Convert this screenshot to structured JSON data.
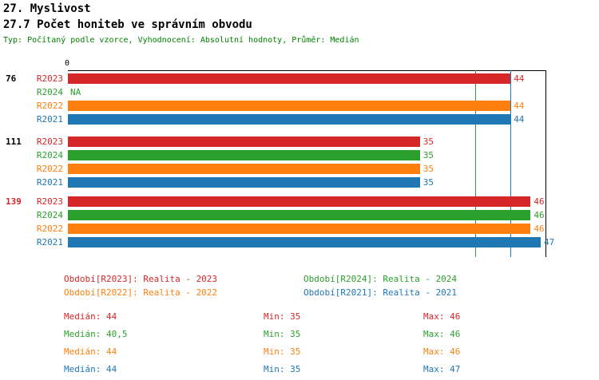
{
  "header": {
    "title": "27. Myslivost",
    "subtitle": "27.7 Počet honiteb ve správním obvodu",
    "info": "Typ: Počítaný podle vzorce, Vyhodnocení: Absolutní hodnoty, Průměr: Medián"
  },
  "colors": {
    "R2023": "#d62728",
    "R2024": "#2ca02c",
    "R2022": "#ff7f0e",
    "R2021": "#1f77b4",
    "info_text": "#008000",
    "axis": "#000000",
    "group_label_default": "#000000",
    "group_label_highlight": "#d62728"
  },
  "chart_data": {
    "type": "bar",
    "orientation": "horizontal",
    "title": "27.7 Počet honiteb ve správním obvodu",
    "xlabel": "",
    "ylabel": "",
    "xlim": [
      0,
      47.4
    ],
    "axis_zero_label": "0",
    "grid": false,
    "legend_position": "bottom",
    "series_order": [
      "R2023",
      "R2024",
      "R2022",
      "R2021"
    ],
    "groups": [
      {
        "label": "76",
        "highlighted": false,
        "bars": [
          {
            "series": "R2023",
            "value": 44,
            "display": "44"
          },
          {
            "series": "R2024",
            "value": null,
            "display": "NA"
          },
          {
            "series": "R2022",
            "value": 44,
            "display": "44"
          },
          {
            "series": "R2021",
            "value": 44,
            "display": "44"
          }
        ]
      },
      {
        "label": "111",
        "highlighted": false,
        "bars": [
          {
            "series": "R2023",
            "value": 35,
            "display": "35"
          },
          {
            "series": "R2024",
            "value": 35,
            "display": "35"
          },
          {
            "series": "R2022",
            "value": 35,
            "display": "35"
          },
          {
            "series": "R2021",
            "value": 35,
            "display": "35"
          }
        ]
      },
      {
        "label": "139",
        "highlighted": true,
        "bars": [
          {
            "series": "R2023",
            "value": 46,
            "display": "46"
          },
          {
            "series": "R2024",
            "value": 46,
            "display": "46"
          },
          {
            "series": "R2022",
            "value": 46,
            "display": "46"
          },
          {
            "series": "R2021",
            "value": 47,
            "display": "47"
          }
        ]
      }
    ],
    "reference_lines": [
      {
        "value": 40.5,
        "color": "#2ca02c",
        "meaning": "median R2024"
      },
      {
        "value": 44,
        "color": "#1f77b4",
        "meaning": "median R2023/R2022/R2021"
      }
    ]
  },
  "legend": {
    "items": [
      {
        "series": "R2023",
        "text": "Období[R2023]: Realita - 2023"
      },
      {
        "series": "R2024",
        "text": "Období[R2024]: Realita - 2024"
      },
      {
        "series": "R2022",
        "text": "Období[R2022]: Realita - 2022"
      },
      {
        "series": "R2021",
        "text": "Období[R2021]: Realita - 2021"
      }
    ]
  },
  "stats": {
    "labels": {
      "median": "Medián:",
      "min": "Min:",
      "max": "Max:"
    },
    "rows": [
      {
        "series": "R2023",
        "median": "44",
        "min": "35",
        "max": "46"
      },
      {
        "series": "R2024",
        "median": "40,5",
        "min": "35",
        "max": "46"
      },
      {
        "series": "R2022",
        "median": "44",
        "min": "35",
        "max": "46"
      },
      {
        "series": "R2021",
        "median": "44",
        "min": "35",
        "max": "47"
      }
    ]
  }
}
